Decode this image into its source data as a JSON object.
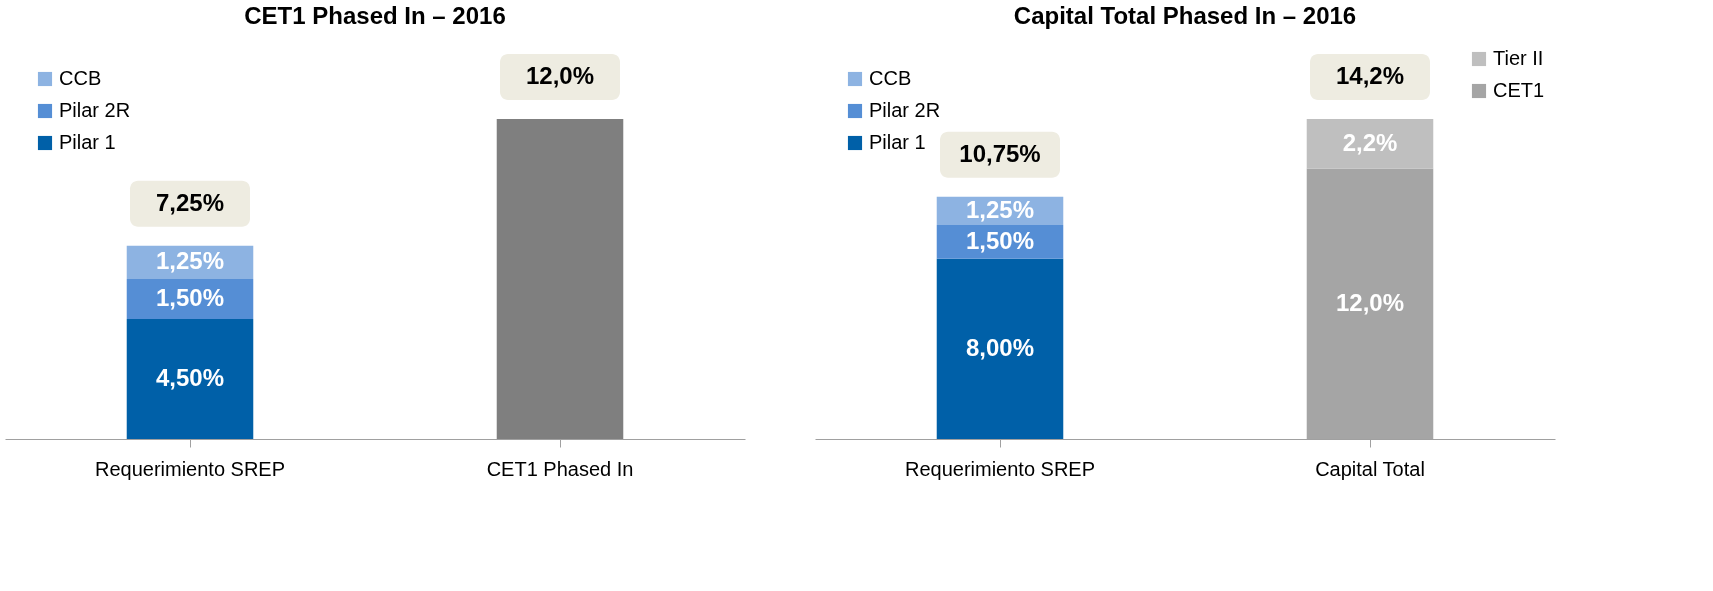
{
  "chart_data": [
    {
      "type": "bar",
      "title": "CET1 Phased In – 2016",
      "categories": [
        "Requerimiento SREP",
        "CET1 Phased In"
      ],
      "stacked": true,
      "tick_labels": "x",
      "grid": false,
      "legend": "top left",
      "series": [
        {
          "name": "Pilar 1",
          "color": "#0060a8",
          "values": [
            4.5,
            null
          ],
          "value_labels": [
            "4,50%",
            null
          ]
        },
        {
          "name": "Pilar 2R",
          "color": "#558ed5",
          "values": [
            1.5,
            null
          ],
          "value_labels": [
            "1,50%",
            null
          ]
        },
        {
          "name": "CCB",
          "color": "#8db3e2",
          "values": [
            1.25,
            null
          ],
          "value_labels": [
            "1,25%",
            null
          ]
        },
        {
          "color": "#7f7f7f",
          "values": [
            null,
            12.0
          ],
          "value_labels": [
            null,
            null
          ]
        }
      ],
      "totals": [
        "7,25%",
        "12,0%"
      ]
    },
    {
      "type": "bar",
      "title": "Capital Total Phased In –  2016",
      "categories": [
        "Requerimiento SREP",
        "Capital Total"
      ],
      "stacked": true,
      "tick_labels": "x",
      "grid": false,
      "legend": "top left",
      "series": [
        {
          "name": "Pilar 1",
          "color": "#0060a8",
          "values": [
            8.0,
            null
          ],
          "value_labels": [
            "8,00%",
            null
          ]
        },
        {
          "name": "Pilar 2R",
          "color": "#558ed5",
          "values": [
            1.5,
            null
          ],
          "value_labels": [
            "1,50%",
            null
          ]
        },
        {
          "name": "CCB",
          "color": "#8db3e2",
          "values": [
            1.25,
            null
          ],
          "value_labels": [
            "1,25%",
            null
          ]
        },
        {
          "name": "CET1",
          "color": "#a5a5a5",
          "values": [
            null,
            12.0
          ],
          "value_labels": [
            null,
            "12,0%"
          ]
        },
        {
          "name": "Tier II",
          "color": "#bfbfbf",
          "values": [
            null,
            2.2
          ],
          "value_labels": [
            null,
            "2,2%"
          ]
        }
      ],
      "totals": [
        "10,75%",
        "14,2%"
      ]
    }
  ]
}
